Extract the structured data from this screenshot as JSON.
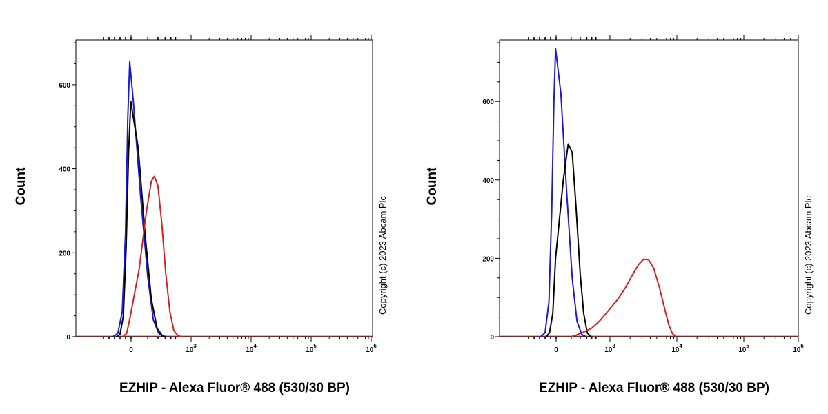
{
  "chart_data": [
    {
      "type": "line",
      "xlabel": "EZHIP - Alexa Fluor® 488 (530/30 BP)",
      "ylabel": "Count",
      "ylim": [
        0,
        700
      ],
      "yticks": [
        0,
        200,
        400,
        600
      ],
      "x_scale": "biexponential",
      "xticks": [
        {
          "value": 0,
          "base": "0",
          "exp": ""
        },
        {
          "value": 1000,
          "base": "10",
          "exp": "3"
        },
        {
          "value": 10000,
          "base": "10",
          "exp": "4"
        },
        {
          "value": 100000,
          "base": "10",
          "exp": "5"
        },
        {
          "value": 1000000,
          "base": "10",
          "exp": "6"
        }
      ],
      "annotation": "Copyright (c) 2023 Abcam Plc",
      "series": [
        {
          "color": "#1a1ad0",
          "points": [
            [
              -330,
              0
            ],
            [
              -240,
              8
            ],
            [
              -160,
              60
            ],
            [
              -100,
              250
            ],
            [
              -60,
              520
            ],
            [
              -25,
              655
            ],
            [
              10,
              560
            ],
            [
              50,
              330
            ],
            [
              100,
              140
            ],
            [
              150,
              40
            ],
            [
              210,
              8
            ],
            [
              280,
              0
            ]
          ]
        },
        {
          "color": "#000000",
          "points": [
            [
              -260,
              0
            ],
            [
              -200,
              6
            ],
            [
              -140,
              50
            ],
            [
              -90,
              210
            ],
            [
              -45,
              440
            ],
            [
              -5,
              560
            ],
            [
              35,
              450
            ],
            [
              80,
              240
            ],
            [
              130,
              90
            ],
            [
              190,
              20
            ],
            [
              260,
              2
            ],
            [
              320,
              0
            ]
          ]
        },
        {
          "color": "#d42020",
          "points": [
            [
              -150,
              0
            ],
            [
              -80,
              8
            ],
            [
              -20,
              45
            ],
            [
              40,
              160
            ],
            [
              90,
              300
            ],
            [
              130,
              370
            ],
            [
              160,
              382
            ],
            [
              200,
              360
            ],
            [
              250,
              270
            ],
            [
              310,
              150
            ],
            [
              380,
              60
            ],
            [
              460,
              15
            ],
            [
              560,
              2
            ],
            [
              700,
              0
            ]
          ]
        }
      ]
    },
    {
      "type": "line",
      "xlabel": "EZHIP - Alexa Fluor® 488 (530/30 BP)",
      "ylabel": "Count",
      "ylim": [
        0,
        750
      ],
      "yticks": [
        0,
        200,
        400,
        600
      ],
      "x_scale": "biexponential",
      "xticks": [
        {
          "value": 0,
          "base": "0",
          "exp": ""
        },
        {
          "value": 1000,
          "base": "10",
          "exp": "3"
        },
        {
          "value": 10000,
          "base": "10",
          "exp": "4"
        },
        {
          "value": 100000,
          "base": "10",
          "exp": "5"
        },
        {
          "value": 1000000,
          "base": "10",
          "exp": "6"
        }
      ],
      "annotation": "Copyright (c) 2023 Abcam Plc",
      "series": [
        {
          "color": "#1a1ad0",
          "points": [
            [
              -280,
              0
            ],
            [
              -200,
              10
            ],
            [
              -130,
              90
            ],
            [
              -80,
              320
            ],
            [
              -40,
              600
            ],
            [
              -10,
              735
            ],
            [
              25,
              620
            ],
            [
              65,
              360
            ],
            [
              110,
              150
            ],
            [
              160,
              40
            ],
            [
              220,
              6
            ],
            [
              290,
              0
            ]
          ]
        },
        {
          "color": "#000000",
          "points": [
            [
              -180,
              0
            ],
            [
              -120,
              10
            ],
            [
              -60,
              60
            ],
            [
              -10,
              200
            ],
            [
              40,
              400
            ],
            [
              75,
              492
            ],
            [
              110,
              470
            ],
            [
              150,
              330
            ],
            [
              200,
              160
            ],
            [
              250,
              60
            ],
            [
              310,
              10
            ],
            [
              380,
              0
            ]
          ]
        },
        {
          "color": "#d42020",
          "points": [
            [
              100,
              0
            ],
            [
              150,
              4
            ],
            [
              250,
              12
            ],
            [
              400,
              22
            ],
            [
              600,
              40
            ],
            [
              900,
              65
            ],
            [
              1300,
              95
            ],
            [
              1700,
              125
            ],
            [
              2200,
              160
            ],
            [
              2700,
              185
            ],
            [
              3200,
              198
            ],
            [
              3800,
              196
            ],
            [
              4500,
              175
            ],
            [
              5500,
              125
            ],
            [
              6600,
              70
            ],
            [
              7600,
              30
            ],
            [
              8600,
              8
            ],
            [
              9800,
              0
            ]
          ]
        }
      ]
    }
  ]
}
